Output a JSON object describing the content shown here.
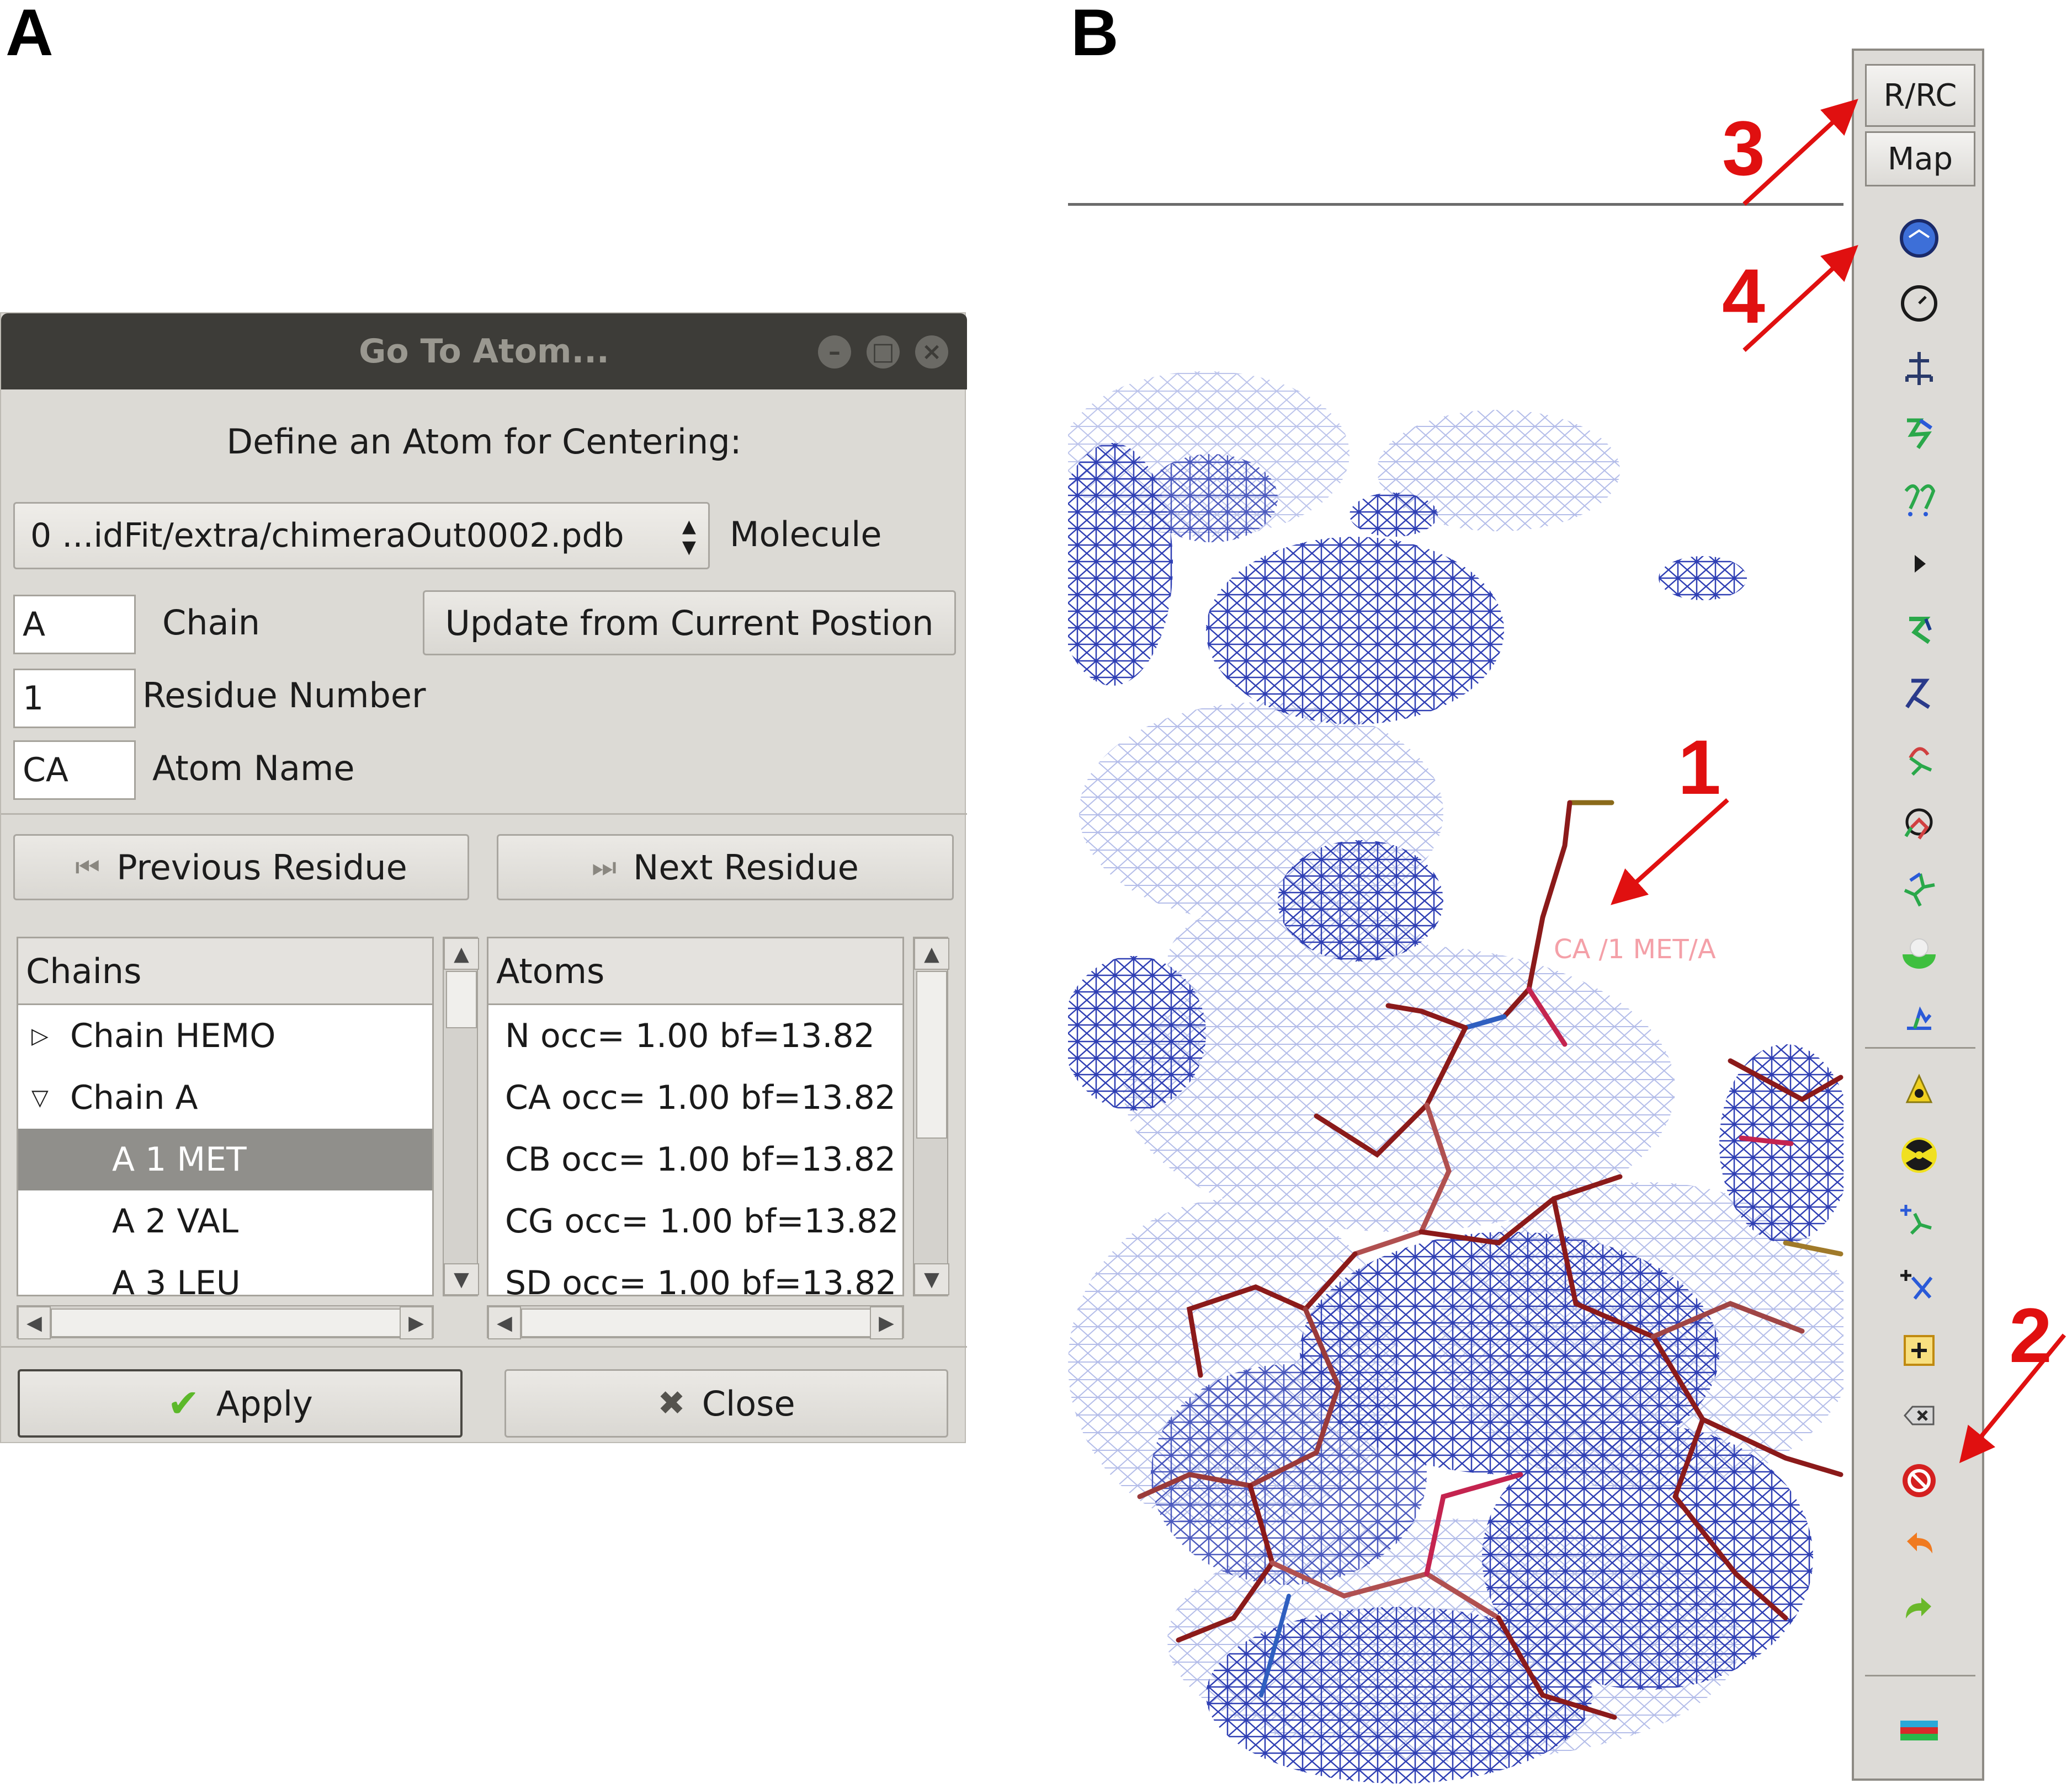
{
  "panels": {
    "a": "A",
    "b": "B"
  },
  "dialog": {
    "title": "Go To Atom...",
    "heading": "Define an Atom for Centering:",
    "molecule_value": "0 ...idFit/extra/chimeraOut0002.pdb",
    "molecule_label": "Molecule",
    "chain_value": "A",
    "chain_label": "Chain",
    "update_button": "Update from Current Postion",
    "residue_value": "1",
    "residue_label": "Residue Number",
    "atom_value": "CA",
    "atom_label": "Atom Name",
    "prev_button": "Previous Residue",
    "next_button": "Next Residue",
    "chains_header": "Chains",
    "chains": [
      "Chain HEMO",
      "Chain A",
      "A 1 MET",
      "A 2 VAL",
      "A 3 LEU"
    ],
    "atoms_header": "Atoms",
    "atoms": [
      "N  occ= 1.00 bf=13.82",
      "CA  occ= 1.00 bf=13.82",
      "CB  occ= 1.00 bf=13.82",
      "CG  occ= 1.00 bf=13.82",
      "SD  occ= 1.00 bf=13.82"
    ],
    "apply_button": "Apply",
    "close_button": "Close"
  },
  "coot": {
    "rrc_button": "R/RC",
    "map_button": "Map",
    "atom_label_in_view": "CA /1 MET/A",
    "tools": [
      "refine-zone-icon",
      "regularize-icon",
      "rigid-body-fit-icon",
      "real-space-refine-icon",
      "sphere-refine-icon",
      "expand-arrow-icon",
      "rotamer-icon",
      "flip-peptide-icon",
      "chi-angles-icon",
      "torsion-general-icon",
      "pepflip-icon",
      "side-by-side-icon",
      "mutate-icon",
      "auto-fit-rotamer-icon",
      "radiation-icon",
      "add-terminal-icon",
      "add-atom-icon",
      "add-alt-conf-icon",
      "delete-icon",
      "clear-icon",
      "undo-icon",
      "redo-icon",
      "display-manager-icon"
    ]
  },
  "callouts": [
    "1",
    "2",
    "3",
    "4"
  ],
  "colors": {
    "arrow": "#e01010",
    "mesh_dark": "#2f3fb4",
    "mesh_light": "#aab4e6",
    "bond": "#8b1a1a"
  }
}
